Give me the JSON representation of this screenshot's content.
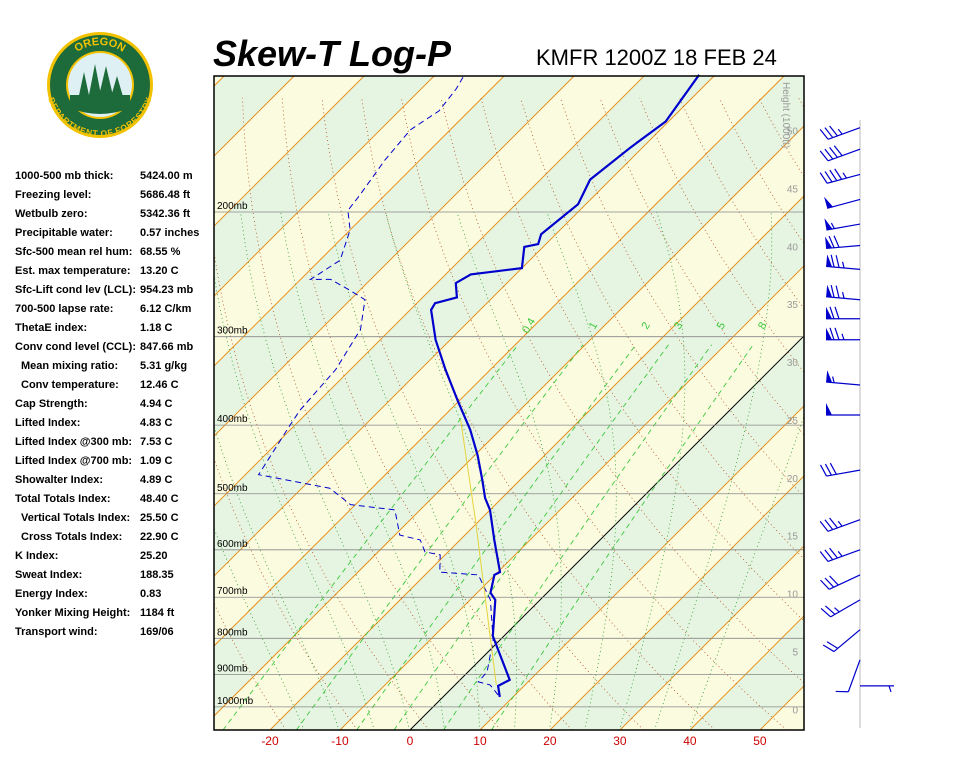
{
  "header": {
    "title": "Skew-T Log-P",
    "station": "KMFR 1200Z 18 FEB 24"
  },
  "logo": {
    "top": "OREGON",
    "bottom": "DEPARTMENT OF FORESTRY"
  },
  "indices": [
    {
      "label": "1000-500 mb thick:",
      "value": "5424.00 m"
    },
    {
      "label": "Freezing level:",
      "value": "5686.48 ft"
    },
    {
      "label": "Wetbulb zero:",
      "value": "5342.36 ft"
    },
    {
      "label": "Precipitable water:",
      "value": "0.57 inches"
    },
    {
      "label": "Sfc-500 mean rel hum:",
      "value": "68.55 %"
    },
    {
      "label": "Est. max temperature:",
      "value": "13.20 C"
    },
    {
      "label": "Sfc-Lift cond lev (LCL):",
      "value": "954.23 mb"
    },
    {
      "label": "700-500 lapse rate:",
      "value": "6.12 C/km"
    },
    {
      "label": "ThetaE index:",
      "value": "1.18 C"
    },
    {
      "label": "Conv cond level (CCL):",
      "value": "847.66 mb"
    },
    {
      "label": "Mean mixing ratio:",
      "value": "5.31 g/kg"
    },
    {
      "label": "Conv temperature:",
      "value": "12.46 C"
    },
    {
      "label": "Cap Strength:",
      "value": "4.94 C"
    },
    {
      "label": "Lifted Index:",
      "value": "4.83 C"
    },
    {
      "label": "Lifted Index @300 mb:",
      "value": "7.53 C"
    },
    {
      "label": "Lifted Index @700 mb:",
      "value": "1.09 C"
    },
    {
      "label": "Showalter Index:",
      "value": "4.89 C"
    },
    {
      "label": "Total Totals Index:",
      "value": "48.40 C"
    },
    {
      "label": "Vertical Totals Index:",
      "value": "25.50 C"
    },
    {
      "label": "Cross Totals Index:",
      "value": "22.90 C"
    },
    {
      "label": "K Index:",
      "value": "25.20"
    },
    {
      "label": "Sweat Index:",
      "value": "188.35"
    },
    {
      "label": "Energy Index:",
      "value": "0.83"
    },
    {
      "label": "Yonker Mixing Height:",
      "value": "1184 ft"
    },
    {
      "label": "Transport wind:",
      "value": "169/06"
    }
  ],
  "chart_data": {
    "type": "skew-t",
    "xlim": [
      -28,
      56.3
    ],
    "xticks": [
      -20,
      -10,
      0,
      10,
      20,
      30,
      40,
      50
    ],
    "ylim": [
      1078,
      128.5
    ],
    "ylog": true,
    "yticks": [
      {
        "value": 1000,
        "label": "1000mb"
      },
      {
        "value": 900,
        "label": "900mb"
      },
      {
        "value": 800,
        "label": "800mb"
      },
      {
        "value": 700,
        "label": "700mb"
      },
      {
        "value": 600,
        "label": "600mb"
      },
      {
        "value": 500,
        "label": "500mb"
      },
      {
        "value": 400,
        "label": "400mb"
      },
      {
        "value": 300,
        "label": "300mb"
      },
      {
        "value": 200,
        "label": "200mb"
      }
    ],
    "y2label": "Height (1000ft)",
    "y2lim": [
      -1.7,
      54.8
    ],
    "y2ticks": [
      0,
      5,
      10,
      15,
      20,
      25,
      30,
      35,
      40,
      45,
      50
    ],
    "mixing_ratios": [
      0.4,
      1,
      2,
      3,
      5,
      8
    ],
    "zero_isotherm_color": "#000000",
    "isotherm_color": "#e8901c",
    "series": [
      {
        "color": "#0000cc",
        "style": "solid",
        "pressure": [
          968,
          934,
          916,
          794,
          706,
          690,
          651,
          645,
          581,
          527,
          507,
          478,
          441,
          406,
          369,
          334,
          303,
          275,
          269,
          264,
          252,
          245,
          240,
          224,
          222,
          215,
          195,
          180,
          162,
          149,
          128
        ],
        "values": [
          8.1,
          6.3,
          7.1,
          -1.6,
          -6.4,
          -8.1,
          -10.1,
          -9.7,
          -15.1,
          -20,
          -22.4,
          -25.4,
          -29.6,
          -34.3,
          -40.3,
          -46.4,
          -52.1,
          -57,
          -57.4,
          -55.1,
          -57.3,
          -56.4,
          -50,
          -52.7,
          -51.1,
          -52.1,
          -51.1,
          -52.9,
          -51.7,
          -50.4,
          -52.3
        ]
      },
      {
        "color": "#0000cc",
        "style": "dashed",
        "pressure": [
          962,
          931,
          922,
          892,
          804,
          706,
          651,
          645,
          610,
          604,
          581,
          572,
          527,
          518,
          491,
          470,
          400,
          381,
          334,
          293,
          266,
          258,
          249,
          249,
          234,
          212,
          199,
          189,
          169,
          153,
          144,
          134,
          129
        ],
        "values": [
          7.6,
          5,
          2.9,
          2.7,
          -1,
          -7.1,
          -12.4,
          -18.3,
          -20.7,
          -23.3,
          -25.7,
          -29.3,
          -33.6,
          -40.7,
          -46,
          -58.1,
          -60.7,
          -61.4,
          -62.1,
          -64.3,
          -67.9,
          -71.4,
          -75.7,
          -78.6,
          -77.1,
          -80,
          -83.1,
          -83.6,
          -85,
          -85.7,
          -84.3,
          -85,
          -85.7
        ]
      },
      {
        "color": "#e6d23c",
        "style": "thin",
        "pressure": [
          931,
          544,
          393
        ],
        "values": [
          5.9,
          -20.7,
          -37.1
        ]
      }
    ],
    "winds": {
      "color": "#0000cc",
      "pressure": [
        934,
        858,
        778,
        706,
        651,
        600,
        544,
        463,
        387,
        351,
        303,
        283,
        266,
        241,
        223,
        208,
        192,
        177,
        163,
        152
      ],
      "direction": [
        90,
        200,
        230,
        240,
        245,
        250,
        250,
        260,
        270,
        275,
        270,
        270,
        275,
        275,
        265,
        260,
        255,
        255,
        250,
        250
      ],
      "speed": [
        5,
        10,
        20,
        25,
        30,
        35,
        35,
        30,
        50,
        55,
        75,
        70,
        75,
        75,
        70,
        55,
        50,
        45,
        40,
        35
      ]
    }
  }
}
